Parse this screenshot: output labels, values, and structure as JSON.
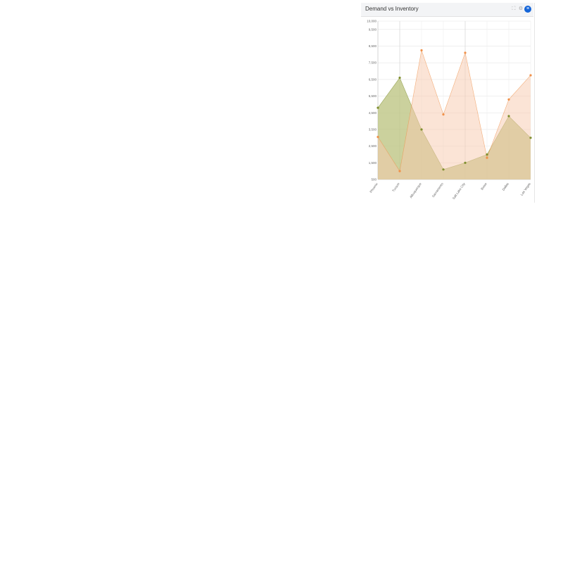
{
  "widget": {
    "title": "Demand vs Inventory",
    "icons": [
      "expand-icon",
      "gear-icon",
      "menu-icon"
    ]
  },
  "chart_data": {
    "type": "area",
    "title": "Demand vs Inventory",
    "categories": [
      "Phoenix",
      "Tucson",
      "Albuquerque",
      "Sacramento",
      "Salt Lake City",
      "Boise",
      "Dallas",
      "Las Vegas"
    ],
    "ylim": [
      500,
      10000
    ],
    "yticks": [
      "500",
      "1,500",
      "2,500",
      "3,500",
      "4,500",
      "5,500",
      "6,500",
      "7,500",
      "8,500",
      "9,500",
      "10,000"
    ],
    "grid": true,
    "series": [
      {
        "color": "#7f8f2f",
        "fill": "#b9c27c",
        "values": [
          4800,
          6600,
          3500,
          1100,
          1500,
          2000,
          4300,
          3000
        ]
      },
      {
        "color": "#f0914a",
        "fill": "#f8c9ad",
        "values": [
          3050,
          1000,
          8250,
          4400,
          8100,
          1800,
          5300,
          6750
        ]
      }
    ]
  }
}
